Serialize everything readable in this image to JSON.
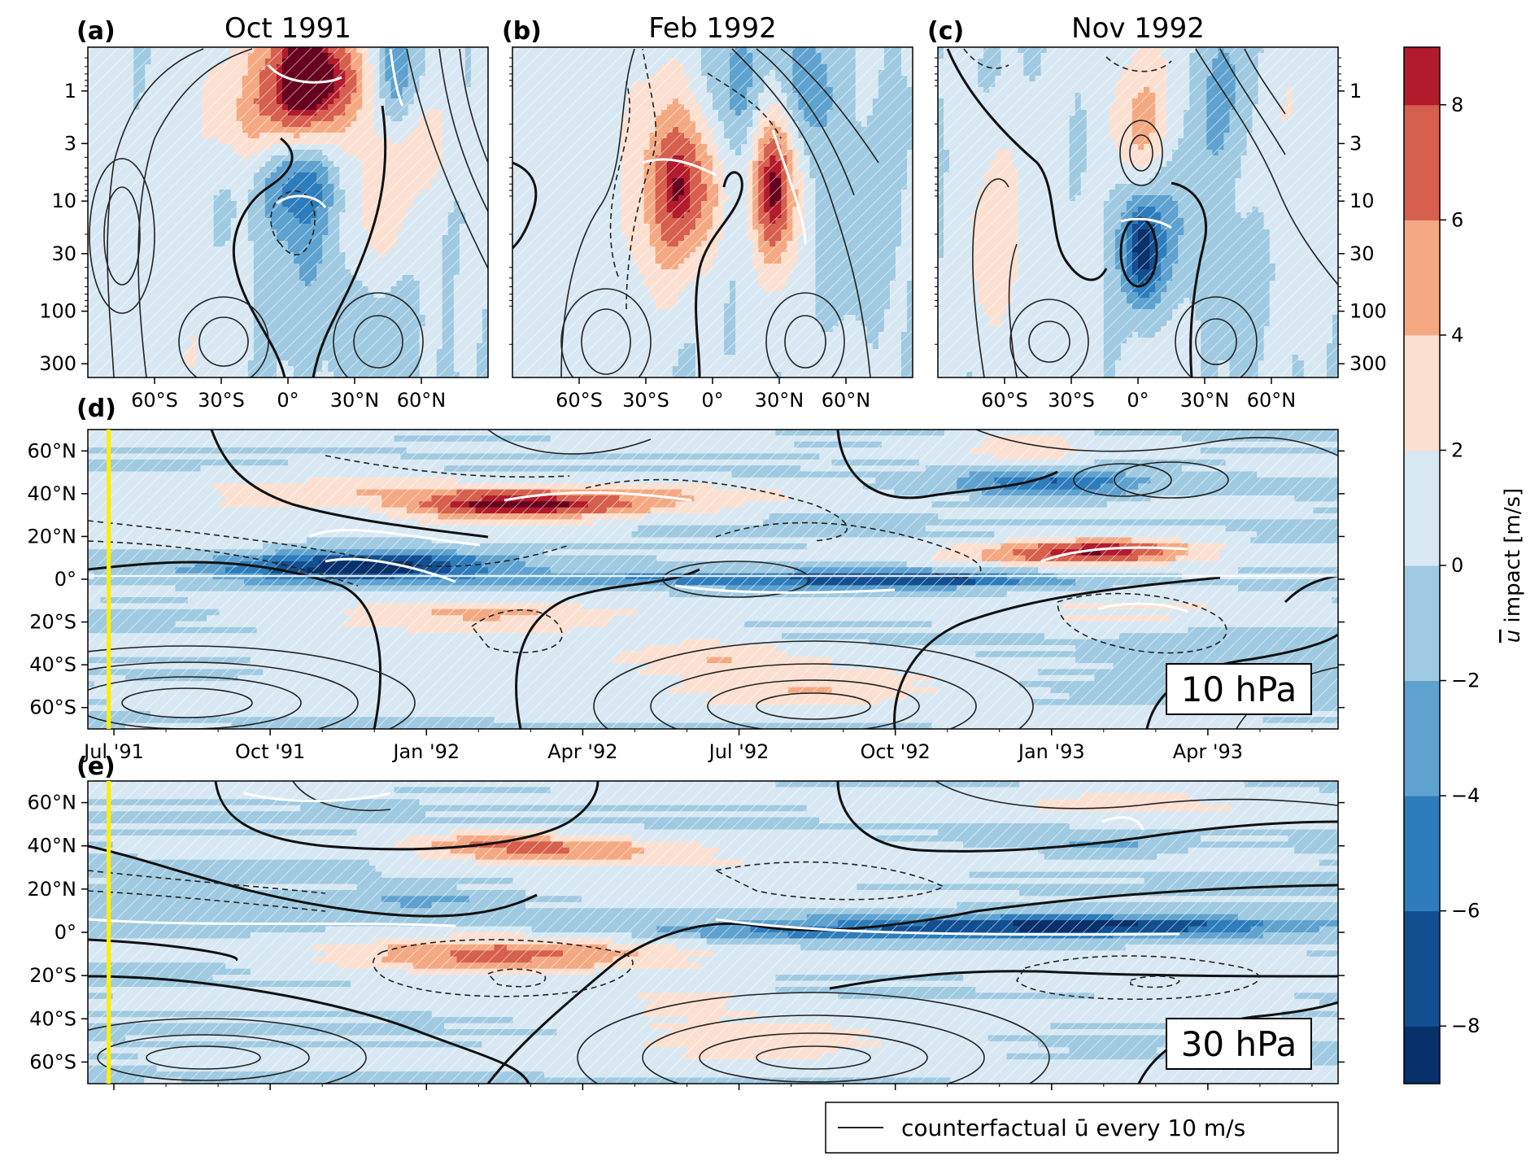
{
  "colors": {
    "levels": [
      "#08306b",
      "#124f91",
      "#2d7cbb",
      "#5fa2cf",
      "#9fcae1",
      "#d8e8f3",
      "#fbe0d1",
      "#f4a983",
      "#d6604d",
      "#b11b2c",
      "#67001f"
    ],
    "contour": "#222222",
    "highlight": "#ffffff",
    "marker_line": "#ffee00"
  },
  "panels": [
    {
      "id": "a",
      "letter": "(a)",
      "title": "Oct 1991"
    },
    {
      "id": "b",
      "letter": "(b)",
      "title": "Feb 1992"
    },
    {
      "id": "c",
      "letter": "(c)",
      "title": "Nov 1992"
    }
  ],
  "time_panels": [
    {
      "id": "d",
      "letter": "(d)",
      "level_label": "10 hPa"
    },
    {
      "id": "e",
      "letter": "(e)",
      "level_label": "30 hPa"
    }
  ],
  "legend": {
    "text": "counterfactual ū every 10 m/s",
    "line_color": "#222222"
  },
  "chart_data": [
    {
      "type": "heatmap",
      "panel": "a",
      "title": "Oct 1991",
      "x_ticks": [
        "60°S",
        "30°S",
        "0°",
        "30°N",
        "60°N"
      ],
      "x_tick_values": [
        -60,
        -30,
        0,
        30,
        60
      ],
      "xlim": [
        -90,
        90
      ],
      "y_ticks": [
        "1",
        "3",
        "10",
        "30",
        "100",
        "300"
      ],
      "y_tick_values": [
        1,
        3,
        10,
        30,
        100,
        300
      ],
      "ylim": [
        0.4,
        400
      ],
      "y_scale": "log",
      "y_inverted": true,
      "blobs": [
        {
          "x": 8,
          "y": 0.75,
          "sx": 13,
          "sy": 0.45,
          "v": 8
        },
        {
          "x": 0,
          "y": 0.8,
          "sx": 22,
          "sy": 0.55,
          "v": 3.5
        },
        {
          "x": 48,
          "y": 0.75,
          "sx": 6,
          "sy": 0.4,
          "v": -4.5
        },
        {
          "x": 30,
          "y": 0.8,
          "sx": 10,
          "sy": 0.3,
          "v": 2.5
        },
        {
          "x": 5,
          "y": 6,
          "sx": 12,
          "sy": 0.32,
          "v": -6.5
        },
        {
          "x": -18,
          "y": 2,
          "sx": 14,
          "sy": 0.3,
          "v": 2.5
        },
        {
          "x": 40,
          "y": 12,
          "sx": 14,
          "sy": 0.5,
          "v": 3
        },
        {
          "x": 60,
          "y": 3,
          "sx": 15,
          "sy": 0.35,
          "v": 2.3
        },
        {
          "x": 10,
          "y": 30,
          "sx": 16,
          "sy": 0.5,
          "v": -1.8
        },
        {
          "x": -72,
          "y": 50,
          "sx": 20,
          "sy": 1.2,
          "v": 1.3
        },
        {
          "x": -40,
          "y": 200,
          "sx": 16,
          "sy": 0.5,
          "v": 1.2
        },
        {
          "x": 40,
          "y": 200,
          "sx": 14,
          "sy": 0.5,
          "v": -1.2
        }
      ]
    },
    {
      "type": "heatmap",
      "panel": "b",
      "title": "Feb 1992",
      "x_ticks": [
        "60°S",
        "30°S",
        "0°",
        "30°N",
        "60°N"
      ],
      "x_tick_values": [
        -60,
        -30,
        0,
        30,
        60
      ],
      "xlim": [
        -90,
        90
      ],
      "y_ticks": [
        "1",
        "3",
        "10",
        "30",
        "100",
        "300"
      ],
      "y_tick_values": [
        1,
        3,
        10,
        30,
        100,
        300
      ],
      "ylim": [
        0.4,
        400
      ],
      "y_scale": "log",
      "y_inverted": true,
      "blobs": [
        {
          "x": 28,
          "y": 4,
          "sx": 9,
          "sy": 0.5,
          "v": 7
        },
        {
          "x": 28,
          "y": 12,
          "sx": 7,
          "sy": 0.45,
          "v": 5
        },
        {
          "x": -12,
          "y": 8,
          "sx": 12,
          "sy": 0.45,
          "v": 5
        },
        {
          "x": -22,
          "y": 12,
          "sx": 14,
          "sy": 0.7,
          "v": 3
        },
        {
          "x": -15,
          "y": 2,
          "sx": 14,
          "sy": 0.6,
          "v": 2.5
        },
        {
          "x": 12,
          "y": 1.2,
          "sx": 12,
          "sy": 0.5,
          "v": -4
        },
        {
          "x": 42,
          "y": 1.2,
          "sx": 10,
          "sy": 0.5,
          "v": -3.5
        },
        {
          "x": 60,
          "y": 25,
          "sx": 15,
          "sy": 0.6,
          "v": -2
        },
        {
          "x": -70,
          "y": 20,
          "sx": 18,
          "sy": 1.2,
          "v": 1.5
        },
        {
          "x": 50,
          "y": 150,
          "sx": 16,
          "sy": 0.6,
          "v": 1.2
        }
      ]
    },
    {
      "type": "heatmap",
      "panel": "c",
      "title": "Nov 1992",
      "x_ticks": [
        "60°S",
        "30°S",
        "0°",
        "30°N",
        "60°N"
      ],
      "x_tick_values": [
        -60,
        -30,
        0,
        30,
        60
      ],
      "xlim": [
        -90,
        90
      ],
      "y_ticks": [
        "1",
        "3",
        "10",
        "30",
        "100",
        "300"
      ],
      "y_tick_values": [
        1,
        3,
        10,
        30,
        100,
        300
      ],
      "ylim": [
        0.4,
        400
      ],
      "y_scale": "log",
      "y_inverted": true,
      "blobs": [
        {
          "x": 2,
          "y": 28,
          "sx": 5,
          "sy": 0.3,
          "v": -7
        },
        {
          "x": 2,
          "y": 25,
          "sx": 12,
          "sy": 0.5,
          "v": -2.5
        },
        {
          "x": 2,
          "y": 1.2,
          "sx": 12,
          "sy": 0.5,
          "v": 3.5
        },
        {
          "x": 0,
          "y": 3,
          "sx": 9,
          "sy": 0.3,
          "v": 2
        },
        {
          "x": 40,
          "y": 1,
          "sx": 12,
          "sy": 0.5,
          "v": -3
        },
        {
          "x": -65,
          "y": 20,
          "sx": 10,
          "sy": 0.7,
          "v": 3
        },
        {
          "x": 60,
          "y": 2,
          "sx": 18,
          "sy": 0.8,
          "v": 2
        },
        {
          "x": 30,
          "y": 15,
          "sx": 22,
          "sy": 0.6,
          "v": -1.5
        },
        {
          "x": -40,
          "y": 60,
          "sx": 18,
          "sy": 0.8,
          "v": 1.2
        },
        {
          "x": 10,
          "y": 250,
          "sx": 14,
          "sy": 0.5,
          "v": 1.2
        }
      ]
    },
    {
      "type": "heatmap",
      "panel": "d",
      "level": "10 hPa",
      "x_ticks": [
        "Jul '91",
        "Oct '91",
        "Jan '92",
        "Apr '92",
        "Jul '92",
        "Oct '92",
        "Jan '93",
        "Apr '93"
      ],
      "x_tick_values": [
        0.5,
        3.5,
        6.5,
        9.5,
        12.5,
        15.5,
        18.5,
        21.5
      ],
      "xlim": [
        0,
        24
      ],
      "y_ticks": [
        "60°N",
        "40°N",
        "20°N",
        "0°",
        "20°S",
        "40°S",
        "60°S"
      ],
      "y_tick_values": [
        60,
        40,
        20,
        0,
        -20,
        -40,
        -60
      ],
      "ylim": [
        -70,
        70
      ],
      "eruption_month": 0,
      "blobs": [
        {
          "x": 9,
          "y": 35,
          "sx": 1.6,
          "sy": 5,
          "v": 7
        },
        {
          "x": 7.5,
          "y": 33,
          "sx": 1.2,
          "sy": 6,
          "v": 4
        },
        {
          "x": 5.2,
          "y": 42,
          "sx": 2,
          "sy": 6,
          "v": 3
        },
        {
          "x": 4.8,
          "y": 5,
          "sx": 1.8,
          "sy": 5,
          "v": -6.5
        },
        {
          "x": 6,
          "y": 8,
          "sx": 1.5,
          "sy": 4,
          "v": -4
        },
        {
          "x": 7.5,
          "y": -18,
          "sx": 2.2,
          "sy": 6,
          "v": 4.5
        },
        {
          "x": 13,
          "y": 0,
          "sx": 3.5,
          "sy": 3,
          "v": -5
        },
        {
          "x": 16,
          "y": 0,
          "sx": 1.5,
          "sy": 2.5,
          "v": -5
        },
        {
          "x": 18.8,
          "y": 12,
          "sx": 1.6,
          "sy": 4,
          "v": 6.5
        },
        {
          "x": 19.8,
          "y": 15,
          "sx": 1.2,
          "sy": 4,
          "v": 4
        },
        {
          "x": 18.5,
          "y": 45,
          "sx": 1.2,
          "sy": 4,
          "v": -6
        },
        {
          "x": 18,
          "y": 62,
          "sx": 1,
          "sy": 5,
          "v": 3
        },
        {
          "x": 14,
          "y": -50,
          "sx": 2,
          "sy": 7,
          "v": 4
        },
        {
          "x": 12,
          "y": -35,
          "sx": 1.2,
          "sy": 5,
          "v": 3
        },
        {
          "x": 12,
          "y": 40,
          "sx": 1.5,
          "sy": 5,
          "v": 2.5
        },
        {
          "x": 2,
          "y": 30,
          "sx": 2,
          "sy": 8,
          "v": 1.5
        },
        {
          "x": 20,
          "y": -15,
          "sx": 2.5,
          "sy": 6,
          "v": 2
        },
        {
          "x": 8,
          "y": -45,
          "sx": 3,
          "sy": 10,
          "v": 1.3
        },
        {
          "x": 22.5,
          "y": -40,
          "sx": 2,
          "sy": 10,
          "v": -1.5
        }
      ]
    },
    {
      "type": "heatmap",
      "panel": "e",
      "level": "30 hPa",
      "x_ticks": [
        "Jul '91",
        "Oct '91",
        "Jan '92",
        "Apr '92",
        "Jul '92",
        "Oct '92",
        "Jan '93",
        "Apr '93"
      ],
      "x_tick_values": [
        0.5,
        3.5,
        6.5,
        9.5,
        12.5,
        15.5,
        18.5,
        21.5
      ],
      "xlim": [
        0,
        24
      ],
      "y_ticks": [
        "60°N",
        "40°N",
        "20°N",
        "0°",
        "20°S",
        "40°S",
        "60°S"
      ],
      "y_tick_values": [
        60,
        40,
        20,
        0,
        -20,
        -40,
        -60
      ],
      "ylim": [
        -70,
        70
      ],
      "eruption_month": 0,
      "blobs": [
        {
          "x": 9,
          "y": 38,
          "sx": 1.6,
          "sy": 5,
          "v": 5
        },
        {
          "x": 7.5,
          "y": 42,
          "sx": 1,
          "sy": 4,
          "v": 3
        },
        {
          "x": 8.5,
          "y": -10,
          "sx": 2.2,
          "sy": 6,
          "v": 4.5
        },
        {
          "x": 7,
          "y": -12,
          "sx": 2,
          "sy": 7,
          "v": 2.5
        },
        {
          "x": 17,
          "y": 3,
          "sx": 4,
          "sy": 3.5,
          "v": -4.5
        },
        {
          "x": 19.5,
          "y": 3,
          "sx": 2.5,
          "sy": 3,
          "v": -5.5
        },
        {
          "x": 13.5,
          "y": -1,
          "sx": 2,
          "sy": 2,
          "v": -2.5
        },
        {
          "x": 6.5,
          "y": 15,
          "sx": 1,
          "sy": 3,
          "v": -2.5
        },
        {
          "x": 13,
          "y": -50,
          "sx": 2.2,
          "sy": 7,
          "v": 3.5
        },
        {
          "x": 11.5,
          "y": -30,
          "sx": 1,
          "sy": 8,
          "v": 2.5
        },
        {
          "x": 20,
          "y": 60,
          "sx": 2,
          "sy": 6,
          "v": 2.5
        },
        {
          "x": 19.5,
          "y": 40,
          "sx": 0.8,
          "sy": 3,
          "v": -2.5
        },
        {
          "x": 12,
          "y": 30,
          "sx": 3,
          "sy": 8,
          "v": 1.5
        },
        {
          "x": 2,
          "y": 12,
          "sx": 4,
          "sy": 6,
          "v": -1.3
        },
        {
          "x": 21,
          "y": -20,
          "sx": 2.5,
          "sy": 8,
          "v": 1.4
        }
      ]
    }
  ],
  "colorbar": {
    "label_ubar": "u",
    "label_rest": " impact [m/s]",
    "levels": [
      -9,
      -8,
      -6,
      -4,
      -2,
      0,
      2,
      4,
      6,
      8,
      9
    ],
    "tick_values": [
      8,
      6,
      4,
      2,
      0,
      -2,
      -4,
      -6,
      -8
    ],
    "tick_labels": [
      "8",
      "6",
      "4",
      "2",
      "0",
      "−2",
      "−4",
      "−6",
      "−8"
    ]
  }
}
